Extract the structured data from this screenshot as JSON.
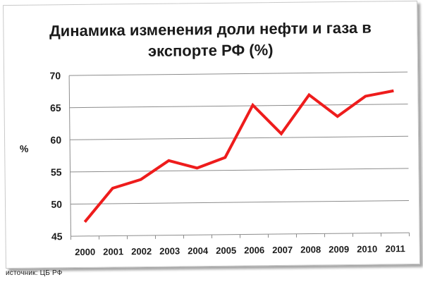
{
  "chart_data": {
    "type": "line",
    "title_line1": "Динамика изменения доли нефти и газа в",
    "title_line2": "экспорте РФ (%)",
    "ylabel": "%",
    "xlabel": "",
    "categories": [
      "2000",
      "2001",
      "2002",
      "2003",
      "2004",
      "2005",
      "2006",
      "2007",
      "2008",
      "2009",
      "2010",
      "2011"
    ],
    "series": [
      {
        "values": [
          47.2,
          52.4,
          53.7,
          56.6,
          55.4,
          57.0,
          65.1,
          60.6,
          66.6,
          63.2,
          66.3,
          67.1
        ]
      }
    ],
    "ylim": [
      45,
      70
    ],
    "yticks": [
      45,
      50,
      55,
      60,
      65,
      70
    ],
    "grid": true,
    "line_color": "#ee1c1c"
  },
  "source_text": "источник: ЦБ РФ"
}
